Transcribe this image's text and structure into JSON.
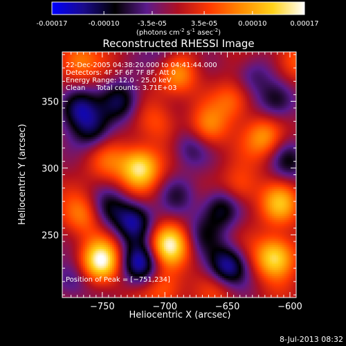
{
  "colors": {
    "background": "#000000",
    "text": "#ffffff",
    "colormap": [
      "#0000ff",
      "#1a0a8c",
      "#000000",
      "#5b1a8c",
      "#b01020",
      "#ff3a00",
      "#ff8c00",
      "#ffd21a",
      "#ffffff"
    ]
  },
  "colorbar": {
    "min": -0.00017,
    "max": 0.00017,
    "ticks": [
      "-0.00017",
      "-0.00010",
      "-3.5e-05",
      "3.5e-05",
      "0.00010",
      "0.00017"
    ],
    "tick_values": [
      -0.00017,
      -0.0001,
      -3.5e-05,
      3.5e-05,
      0.0001,
      0.00017
    ],
    "units": {
      "open": "(photons cm",
      "exp1": "-2",
      "s": " s",
      "exp2": "-1",
      "asec": " asec",
      "exp3": "-2",
      "close": ")"
    }
  },
  "chart_data": {
    "type": "heatmap",
    "title": "Reconstructed RHESSI Image",
    "xlabel": "Heliocentric X (arcsec)",
    "ylabel": "Heliocentric Y (arcsec)",
    "xlim": [
      -782,
      -595
    ],
    "ylim": [
      203,
      387
    ],
    "x_ticks": [
      -750,
      -700,
      -650,
      -600
    ],
    "x_tick_labels": [
      "−750",
      "−700",
      "−650",
      "−600"
    ],
    "y_ticks": [
      250,
      300,
      350
    ],
    "y_tick_labels": [
      "250",
      "300",
      "350"
    ],
    "annotations": [
      "22-Dec-2005 04:38:20.000 to 04:41:44.000",
      "Detectors: 4F 5F 6F 7F 8F, Att 0",
      "Energy Range: 12.0 - 25.0 keV",
      "Clean     Total counts: 3.71E+03"
    ],
    "peak_label": "Position of Peak = [−751,234]",
    "peak_position": [
      -751,
      234
    ],
    "blobs": [
      {
        "x": -751,
        "y": 230,
        "v": 1.0
      },
      {
        "x": -720,
        "y": 300,
        "v": 0.93
      },
      {
        "x": -612,
        "y": 233,
        "v": 0.88
      },
      {
        "x": -697,
        "y": 242,
        "v": 0.9
      },
      {
        "x": -608,
        "y": 273,
        "v": 0.6
      },
      {
        "x": -765,
        "y": 265,
        "v": 0.45
      },
      {
        "x": -620,
        "y": 323,
        "v": 0.55
      },
      {
        "x": -665,
        "y": 330,
        "v": 0.45
      },
      {
        "x": -690,
        "y": 370,
        "v": 0.5
      },
      {
        "x": -770,
        "y": 380,
        "v": 0.5
      },
      {
        "x": -645,
        "y": 350,
        "v": 0.4
      },
      {
        "x": -700,
        "y": 210,
        "v": 0.4
      },
      {
        "x": -745,
        "y": 305,
        "v": 0.3
      },
      {
        "x": -640,
        "y": 285,
        "v": 0.35
      },
      {
        "x": -655,
        "y": 213,
        "v": 0.3
      },
      {
        "x": -705,
        "y": 335,
        "v": 0.28
      },
      {
        "x": -598,
        "y": 380,
        "v": 0.35
      },
      {
        "x": -770,
        "y": 345,
        "v": -0.75
      },
      {
        "x": -735,
        "y": 350,
        "v": -0.6
      },
      {
        "x": -758,
        "y": 328,
        "v": -0.5
      },
      {
        "x": -725,
        "y": 260,
        "v": -0.75
      },
      {
        "x": -745,
        "y": 270,
        "v": -0.4
      },
      {
        "x": -720,
        "y": 228,
        "v": -0.85
      },
      {
        "x": -650,
        "y": 225,
        "v": -0.9
      },
      {
        "x": -655,
        "y": 270,
        "v": -0.6
      },
      {
        "x": -600,
        "y": 305,
        "v": -0.45
      },
      {
        "x": -610,
        "y": 350,
        "v": -0.55
      },
      {
        "x": -680,
        "y": 315,
        "v": -0.4
      },
      {
        "x": -775,
        "y": 215,
        "v": -0.4
      },
      {
        "x": -670,
        "y": 250,
        "v": -0.35
      },
      {
        "x": -700,
        "y": 385,
        "v": -0.3
      },
      {
        "x": -630,
        "y": 370,
        "v": -0.35
      },
      {
        "x": -690,
        "y": 280,
        "v": -0.3
      }
    ]
  },
  "footer": {
    "date": "8-Jul-2013 08:32"
  }
}
